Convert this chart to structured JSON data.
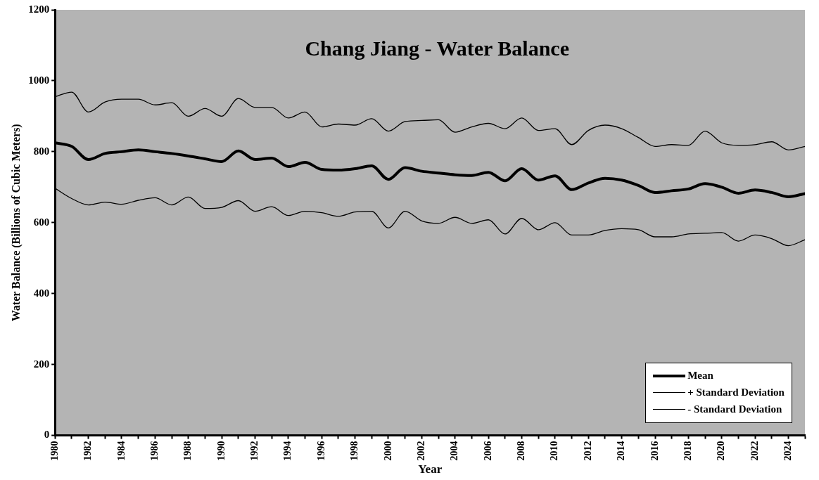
{
  "chart_data": {
    "type": "line",
    "title": "Chang Jiang - Water Balance",
    "xlabel": "Year",
    "ylabel": "Water Balance (Billions of Cubic Meters)",
    "x": [
      1980,
      1981,
      1982,
      1983,
      1984,
      1985,
      1986,
      1987,
      1988,
      1989,
      1990,
      1991,
      1992,
      1993,
      1994,
      1995,
      1996,
      1997,
      1998,
      1999,
      2000,
      2001,
      2002,
      2003,
      2004,
      2005,
      2006,
      2007,
      2008,
      2009,
      2010,
      2011,
      2012,
      2013,
      2014,
      2015,
      2016,
      2017,
      2018,
      2019,
      2020,
      2021,
      2022,
      2023,
      2024,
      2025
    ],
    "series": [
      {
        "name": "Mean",
        "color": "#000000",
        "values": [
          825,
          815,
          778,
          795,
          800,
          805,
          800,
          795,
          788,
          780,
          772,
          802,
          778,
          782,
          758,
          770,
          750,
          748,
          752,
          760,
          722,
          755,
          745,
          740,
          735,
          733,
          742,
          718,
          752,
          720,
          732,
          693,
          712,
          725,
          720,
          705,
          685,
          690,
          695,
          710,
          700,
          683,
          692,
          685,
          673,
          682
        ]
      },
      {
        "name": "+ Standard Deviation",
        "color": "#000000",
        "values": [
          955,
          968,
          912,
          940,
          948,
          948,
          932,
          938,
          900,
          922,
          900,
          950,
          925,
          925,
          895,
          912,
          870,
          878,
          875,
          893,
          858,
          885,
          888,
          890,
          855,
          870,
          880,
          865,
          895,
          860,
          865,
          820,
          860,
          875,
          865,
          840,
          815,
          820,
          818,
          858,
          825,
          818,
          820,
          828,
          805,
          815
        ]
      },
      {
        "name": "- Standard Deviation",
        "color": "#000000",
        "values": [
          697,
          668,
          650,
          658,
          652,
          663,
          670,
          650,
          672,
          640,
          643,
          662,
          632,
          645,
          620,
          632,
          628,
          618,
          630,
          632,
          585,
          632,
          605,
          598,
          615,
          598,
          608,
          568,
          612,
          580,
          600,
          565,
          565,
          578,
          583,
          580,
          560,
          560,
          568,
          570,
          572,
          548,
          565,
          555,
          535,
          552
        ]
      }
    ],
    "xlim": [
      1980,
      2025
    ],
    "xticks": [
      1980,
      {
        "value": 1981,
        "label": null
      },
      1982,
      {
        "value": 1983,
        "label": null
      },
      1984,
      {
        "value": 1985,
        "label": null
      },
      1986,
      {
        "value": 1987,
        "label": null
      },
      1988,
      {
        "value": 1989,
        "label": null
      },
      1990,
      {
        "value": 1991,
        "label": null
      },
      1992,
      {
        "value": 1993,
        "label": null
      },
      1994,
      {
        "value": 1995,
        "label": null
      },
      1996,
      {
        "value": 1997,
        "label": null
      },
      1998,
      {
        "value": 1999,
        "label": null
      },
      2000,
      {
        "value": 2001,
        "label": null
      },
      2002,
      {
        "value": 2003,
        "label": null
      },
      2004,
      {
        "value": 2005,
        "label": null
      },
      2006,
      {
        "value": 2007,
        "label": null
      },
      2008,
      {
        "value": 2009,
        "label": null
      },
      2010,
      {
        "value": 2011,
        "label": null
      },
      2012,
      {
        "value": 2013,
        "label": null
      },
      2014,
      {
        "value": 2015,
        "label": null
      },
      2016,
      {
        "value": 2017,
        "label": null
      },
      2018,
      {
        "value": 2019,
        "label": null
      },
      2020,
      {
        "value": 2021,
        "label": null
      },
      2022,
      {
        "value": 2023,
        "label": null
      },
      2024,
      {
        "value": 2025,
        "label": null
      }
    ],
    "ylim": [
      0,
      1200
    ],
    "yticks": [
      0,
      200,
      400,
      600,
      800,
      1000,
      1200
    ],
    "grid": false,
    "legend": "bottom right",
    "marker": "none",
    "line_style": "solid"
  }
}
